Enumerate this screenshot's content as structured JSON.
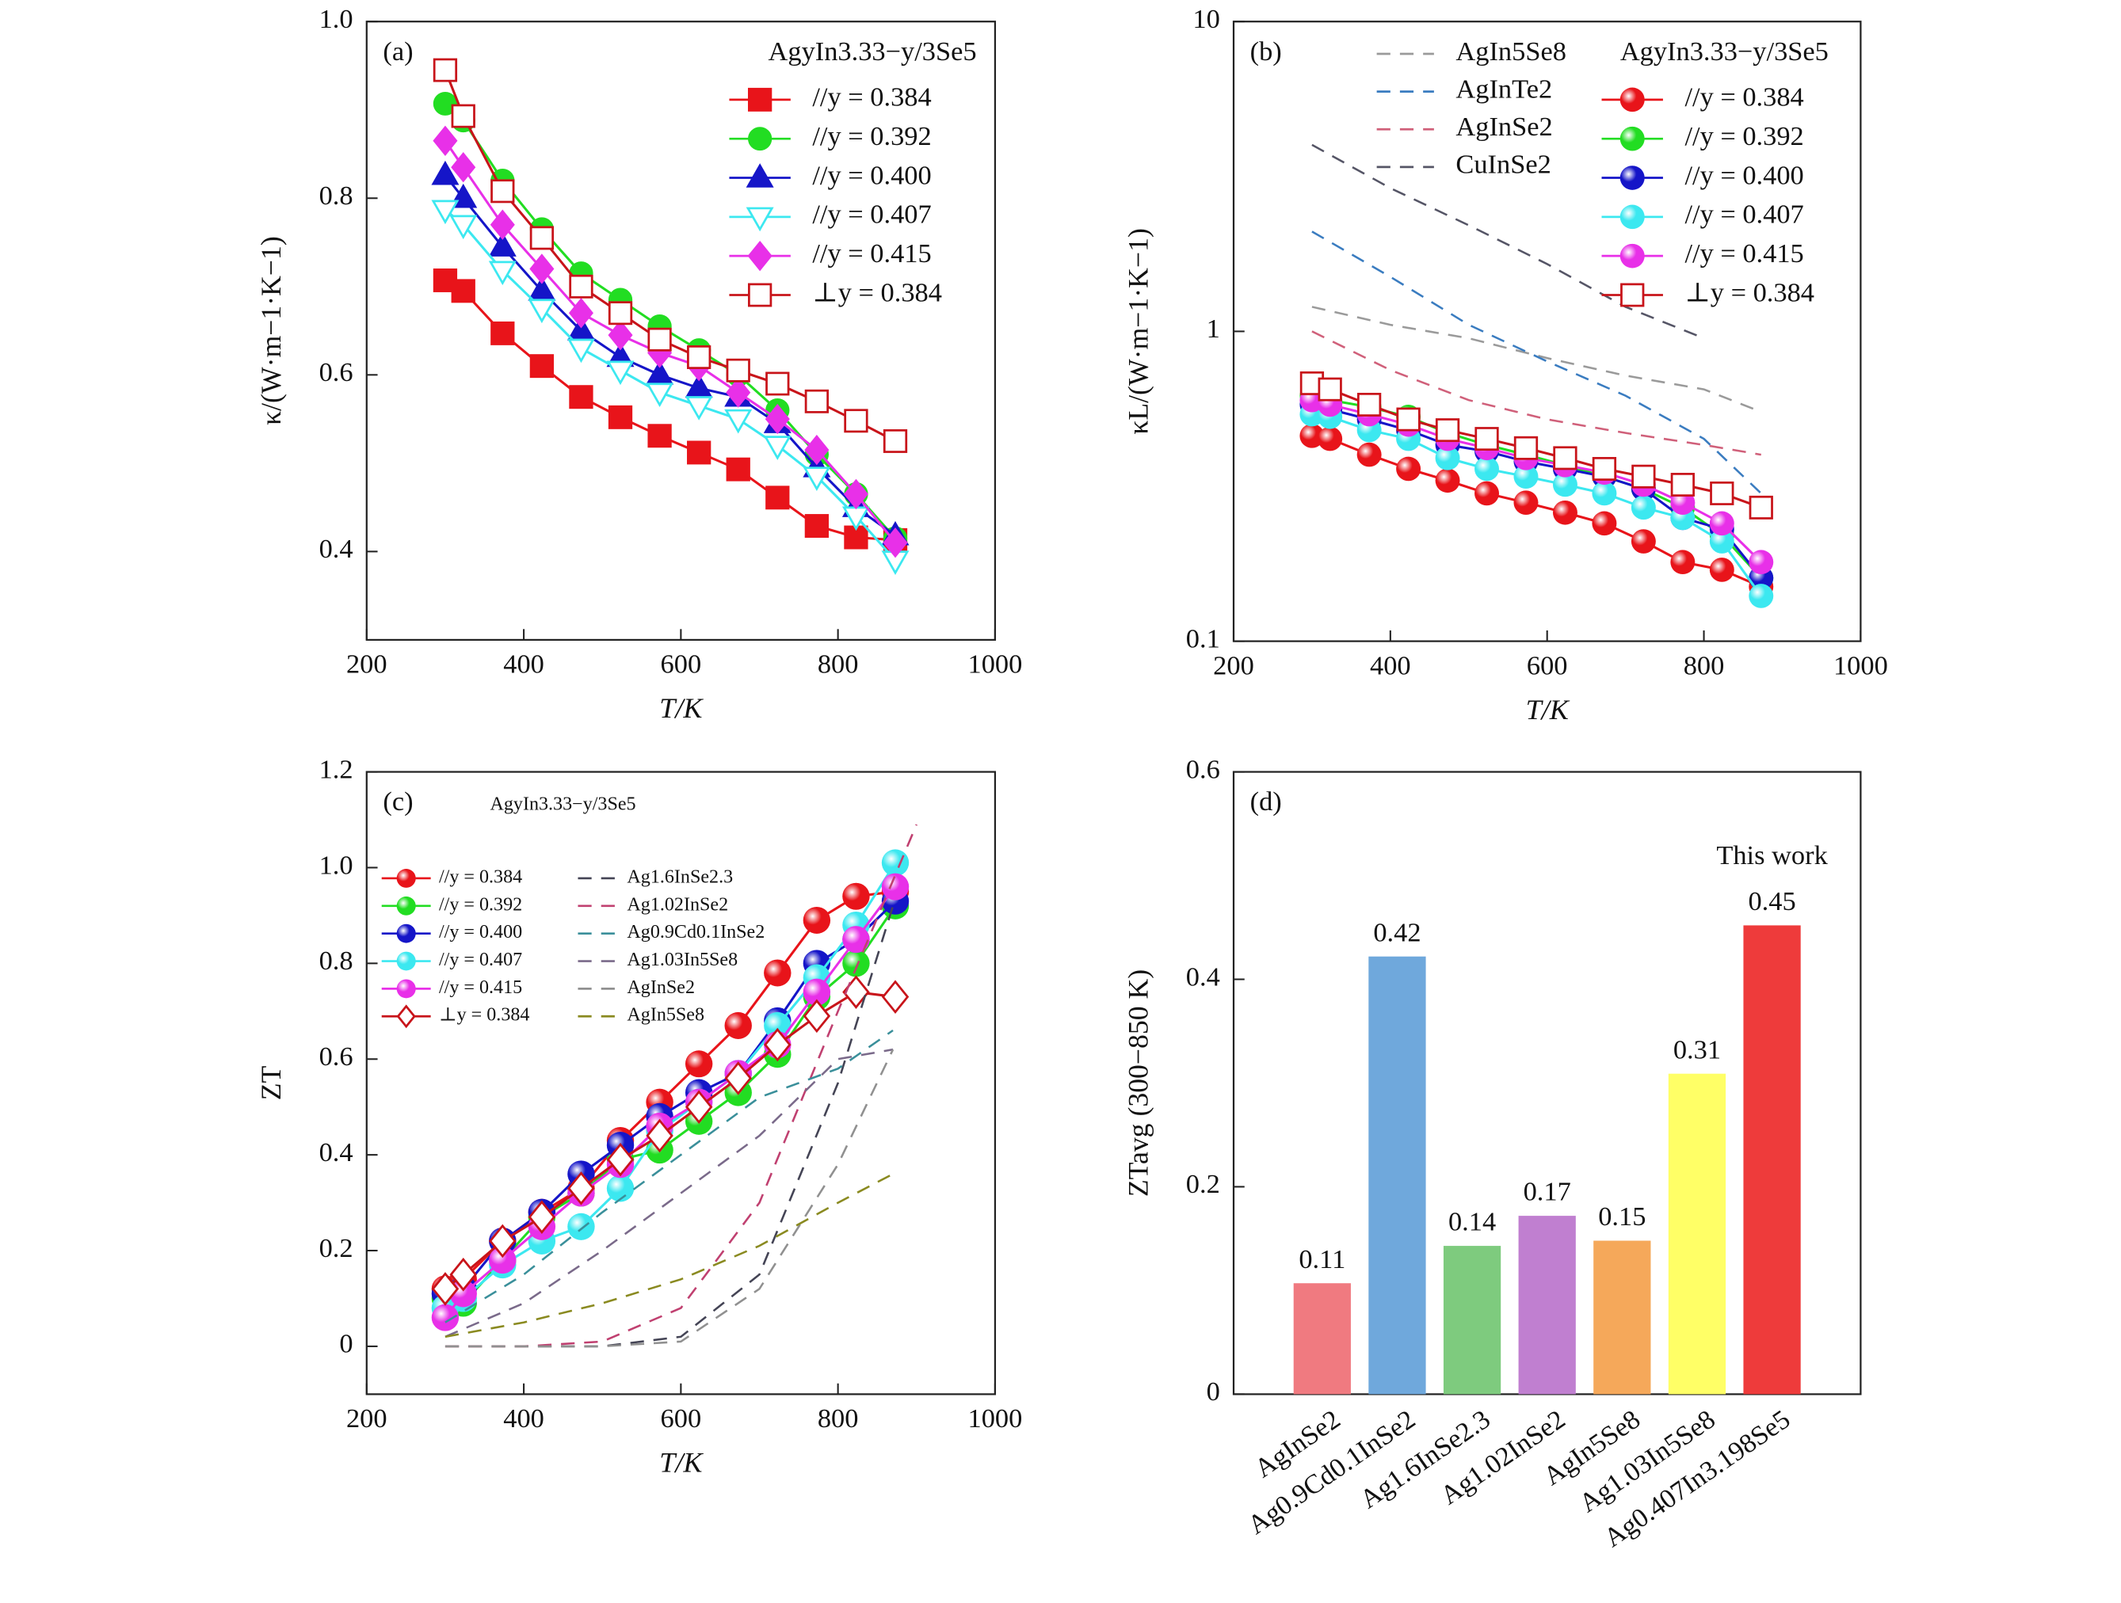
{
  "chart_data": [
    {
      "type": "line",
      "panel_label": "(a)",
      "x_label": "T/K",
      "y_label": "κ/(W·m−1·K−1)",
      "xlim": [
        200,
        1000
      ],
      "xticks": [
        200,
        400,
        600,
        800,
        1000
      ],
      "ylim": [
        0.3,
        1.0
      ],
      "yticks": [
        0.4,
        0.6,
        0.8,
        {
          "value": 1.0,
          "label": "1.0"
        }
      ],
      "legend_title": "AgyIn3.33−y/3Se5",
      "x": [
        300,
        323,
        373,
        423,
        473,
        523,
        573,
        623,
        673,
        723,
        773,
        823,
        873
      ],
      "series": [
        {
          "name": "//y = 0.384",
          "color": "#e8141a",
          "marker": "square",
          "values": [
            0.707,
            0.695,
            0.647,
            0.61,
            0.575,
            0.552,
            0.531,
            0.512,
            0.493,
            0.461,
            0.429,
            0.416,
            0.413
          ]
        },
        {
          "name": "//y = 0.392",
          "color": "#22dd22",
          "marker": "circle",
          "values": [
            0.907,
            0.888,
            0.82,
            0.765,
            0.715,
            0.685,
            0.655,
            0.628,
            0.6,
            0.56,
            0.51,
            0.465,
            0.415
          ]
        },
        {
          "name": "//y = 0.400",
          "color": "#1515c8",
          "marker": "triangle",
          "values": [
            0.826,
            0.8,
            0.745,
            0.695,
            0.65,
            0.62,
            0.6,
            0.585,
            0.575,
            0.545,
            0.495,
            0.45,
            0.418
          ]
        },
        {
          "name": "//y = 0.407",
          "color": "#3ce8f0",
          "marker": "triangle-down-open",
          "values": [
            0.787,
            0.77,
            0.718,
            0.675,
            0.63,
            0.605,
            0.58,
            0.565,
            0.55,
            0.52,
            0.485,
            0.44,
            0.39
          ]
        },
        {
          "name": "//y = 0.415",
          "color": "#e830e8",
          "marker": "diamond",
          "values": [
            0.865,
            0.835,
            0.77,
            0.72,
            0.67,
            0.645,
            0.625,
            0.61,
            0.58,
            0.55,
            0.515,
            0.465,
            0.41
          ]
        },
        {
          "name": "⊥y = 0.384",
          "color": "#c8141a",
          "marker": "square-open",
          "values": [
            0.945,
            0.893,
            0.808,
            0.755,
            0.7,
            0.67,
            0.64,
            0.62,
            0.605,
            0.59,
            0.57,
            0.548,
            0.525
          ]
        }
      ]
    },
    {
      "type": "line",
      "panel_label": "(b)",
      "x_label": "T/K",
      "y_label": "κL/(W·m−1·K−1)",
      "log_y": true,
      "xlim": [
        200,
        1000
      ],
      "xticks": [
        200,
        400,
        600,
        800,
        1000
      ],
      "ylim": [
        0.1,
        10
      ],
      "yticks": [
        0.1,
        1,
        10
      ],
      "legend_title": "AgyIn3.33−y/3Se5",
      "x": [
        300,
        323,
        373,
        423,
        473,
        523,
        573,
        623,
        673,
        723,
        773,
        823,
        873
      ],
      "series": [
        {
          "name": "AgIn5Se8",
          "color": "#9a9a9a",
          "style": "dashed",
          "x": [
            300,
            400,
            500,
            600,
            700,
            800,
            873
          ],
          "values": [
            1.2,
            1.05,
            0.95,
            0.82,
            0.72,
            0.65,
            0.55
          ]
        },
        {
          "name": "AgInTe2",
          "color": "#3a7cc0",
          "style": "dashed",
          "x": [
            300,
            400,
            500,
            600,
            700,
            800,
            873
          ],
          "values": [
            2.1,
            1.5,
            1.05,
            0.8,
            0.62,
            0.45,
            0.3
          ]
        },
        {
          "name": "AgInSe2",
          "color": "#d0607a",
          "style": "dashed",
          "x": [
            300,
            400,
            500,
            600,
            700,
            800,
            873
          ],
          "values": [
            1.0,
            0.75,
            0.6,
            0.52,
            0.47,
            0.43,
            0.4
          ]
        },
        {
          "name": "CuInSe2",
          "color": "#555566",
          "style": "dashed",
          "x": [
            300,
            400,
            500,
            600,
            700,
            800
          ],
          "values": [
            4.0,
            2.9,
            2.2,
            1.65,
            1.2,
            0.95
          ]
        },
        {
          "name": "//y = 0.384",
          "color": "#e8141a",
          "marker": "sphere",
          "values": [
            0.46,
            0.45,
            0.4,
            0.36,
            0.33,
            0.3,
            0.28,
            0.26,
            0.24,
            0.21,
            0.18,
            0.17,
            0.15
          ]
        },
        {
          "name": "//y = 0.392",
          "color": "#22dd22",
          "marker": "sphere",
          "values": [
            0.62,
            0.6,
            0.57,
            0.53,
            0.47,
            0.43,
            0.4,
            0.37,
            0.34,
            0.31,
            0.27,
            0.22,
            0.16
          ]
        },
        {
          "name": "//y = 0.400",
          "color": "#1515c8",
          "marker": "sphere",
          "values": [
            0.58,
            0.56,
            0.52,
            0.48,
            0.43,
            0.41,
            0.38,
            0.36,
            0.34,
            0.31,
            0.25,
            0.23,
            0.16
          ]
        },
        {
          "name": "//y = 0.407",
          "color": "#3ce8f0",
          "marker": "sphere",
          "values": [
            0.54,
            0.53,
            0.48,
            0.45,
            0.39,
            0.36,
            0.34,
            0.32,
            0.3,
            0.27,
            0.25,
            0.21,
            0.14
          ]
        },
        {
          "name": "//y = 0.415",
          "color": "#e830e8",
          "marker": "sphere",
          "values": [
            0.6,
            0.58,
            0.54,
            0.5,
            0.45,
            0.42,
            0.39,
            0.37,
            0.35,
            0.32,
            0.28,
            0.24,
            0.18
          ]
        },
        {
          "name": "⊥y = 0.384",
          "color": "#c8141a",
          "marker": "square-open",
          "values": [
            0.68,
            0.65,
            0.58,
            0.52,
            0.48,
            0.45,
            0.42,
            0.39,
            0.36,
            0.34,
            0.32,
            0.3,
            0.27
          ]
        }
      ]
    },
    {
      "type": "line",
      "panel_label": "(c)",
      "x_label": "T/K",
      "y_label": "ZT",
      "xlim": [
        200,
        1000
      ],
      "xticks": [
        200,
        400,
        600,
        800,
        1000
      ],
      "ylim": [
        -0.1,
        1.2
      ],
      "yticks": [
        0,
        0.2,
        0.4,
        0.6,
        0.8,
        {
          "value": 1.0,
          "label": "1.0"
        },
        1.2
      ],
      "legend_title": "AgyIn3.33−y/3Se5",
      "x": [
        300,
        323,
        373,
        423,
        473,
        523,
        573,
        623,
        673,
        723,
        773,
        823,
        873
      ],
      "series": [
        {
          "name": "//y = 0.384",
          "color": "#e8141a",
          "marker": "sphere",
          "values": [
            0.12,
            0.14,
            0.22,
            0.28,
            0.33,
            0.43,
            0.51,
            0.59,
            0.67,
            0.78,
            0.89,
            0.94,
            0.95
          ]
        },
        {
          "name": "//y = 0.392",
          "color": "#22dd22",
          "marker": "sphere",
          "values": [
            0.1,
            0.09,
            0.18,
            0.27,
            0.32,
            0.39,
            0.41,
            0.47,
            0.53,
            0.61,
            0.73,
            0.8,
            0.92
          ]
        },
        {
          "name": "//y = 0.400",
          "color": "#1515c8",
          "marker": "sphere",
          "values": [
            0.11,
            0.12,
            0.22,
            0.28,
            0.36,
            0.42,
            0.48,
            0.53,
            0.57,
            0.68,
            0.8,
            0.85,
            0.93
          ]
        },
        {
          "name": "//y = 0.407",
          "color": "#3ce8f0",
          "marker": "sphere",
          "values": [
            0.08,
            0.1,
            0.17,
            0.22,
            0.25,
            0.33,
            0.45,
            0.51,
            0.57,
            0.67,
            0.77,
            0.88,
            1.01
          ]
        },
        {
          "name": "//y = 0.415",
          "color": "#e830e8",
          "marker": "sphere",
          "values": [
            0.06,
            0.11,
            0.18,
            0.25,
            0.32,
            0.38,
            0.46,
            0.51,
            0.57,
            0.63,
            0.74,
            0.85,
            0.96
          ]
        },
        {
          "name": "⊥y = 0.384",
          "color": "#c8141a",
          "marker": "diamond-open",
          "values": [
            0.12,
            0.15,
            0.22,
            0.27,
            0.33,
            0.39,
            0.44,
            0.5,
            0.56,
            0.63,
            0.69,
            0.74,
            0.73
          ]
        },
        {
          "name": "Ag1.6InSe2.3",
          "color": "#444455",
          "style": "dashed",
          "x": [
            300,
            400,
            500,
            600,
            700,
            800,
            870
          ],
          "values": [
            0,
            0,
            0,
            0.02,
            0.15,
            0.55,
            0.92
          ]
        },
        {
          "name": "Ag1.02InSe2",
          "color": "#c04070",
          "style": "dashed",
          "x": [
            300,
            400,
            500,
            600,
            700,
            800,
            900
          ],
          "values": [
            0,
            0,
            0.01,
            0.08,
            0.3,
            0.7,
            1.09
          ]
        },
        {
          "name": "Ag0.9Cd0.1InSe2",
          "color": "#3a8f9a",
          "style": "dashed",
          "x": [
            300,
            400,
            500,
            600,
            700,
            800,
            870
          ],
          "values": [
            0.05,
            0.15,
            0.28,
            0.4,
            0.52,
            0.58,
            0.66
          ]
        },
        {
          "name": "Ag1.03In5Se8",
          "color": "#7a6a8a",
          "style": "dashed",
          "x": [
            300,
            400,
            500,
            600,
            700,
            800,
            870
          ],
          "values": [
            0.02,
            0.09,
            0.2,
            0.32,
            0.44,
            0.6,
            0.62
          ]
        },
        {
          "name": "AgInSe2",
          "color": "#909090",
          "style": "dashed",
          "x": [
            300,
            400,
            500,
            600,
            700,
            800,
            870
          ],
          "values": [
            0,
            0,
            0,
            0.01,
            0.12,
            0.38,
            0.62
          ]
        },
        {
          "name": "AgIn5Se8",
          "color": "#8a8a20",
          "style": "dashed",
          "x": [
            300,
            400,
            500,
            600,
            700,
            800,
            870
          ],
          "values": [
            0.02,
            0.05,
            0.09,
            0.14,
            0.21,
            0.3,
            0.36
          ]
        }
      ]
    },
    {
      "type": "bar",
      "panel_label": "(d)",
      "y_label": "ZTavg (300−850 K)",
      "ylim": [
        0,
        0.6
      ],
      "yticks": [
        0,
        0.2,
        0.4,
        0.6
      ],
      "annotation": "This work",
      "annotation_color": "#e8141a",
      "categories": [
        "AgInSe2",
        "Ag0.9Cd0.1InSe2",
        "Ag1.6InSe2.3",
        "Ag1.02InSe2",
        "AgIn5Se8",
        "Ag1.03In5Se8",
        "Ag0.407In3.198Se5"
      ],
      "category_label_colors": [
        "#111111",
        "#111111",
        "#111111",
        "#111111",
        "#111111",
        "#111111",
        "#e8141a"
      ],
      "colors": [
        "#f07a80",
        "#6fa8dc",
        "#7ecb7e",
        "#c07fd0",
        "#f5a85a",
        "#ffff66",
        "#ee3b3b"
      ],
      "values": [
        0.107,
        0.422,
        0.143,
        0.172,
        0.148,
        0.309,
        0.452
      ],
      "value_labels": [
        "0.11",
        "0.42",
        "0.14",
        "0.17",
        "0.15",
        "0.31",
        "0.45"
      ]
    }
  ]
}
